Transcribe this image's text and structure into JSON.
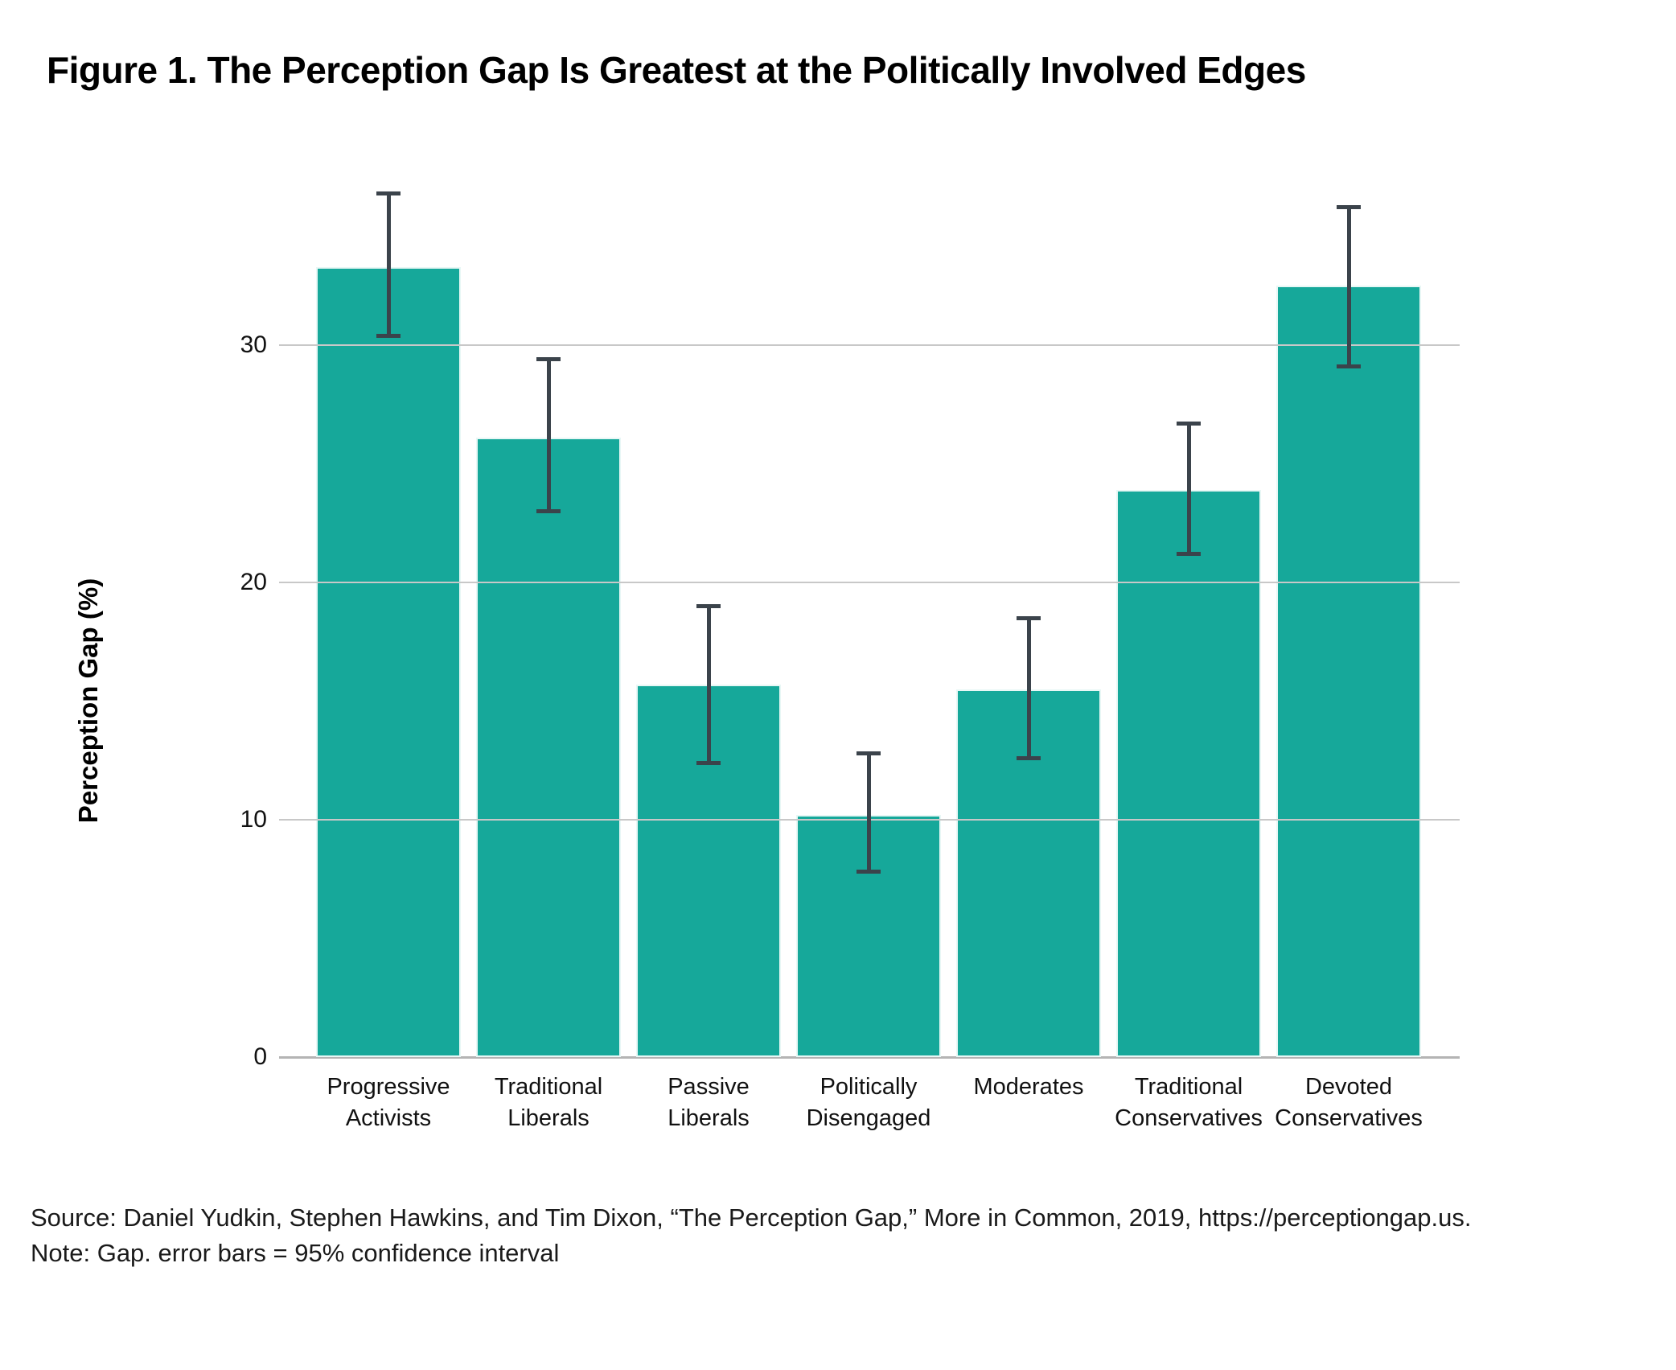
{
  "figure": {
    "title": "Figure 1. The Perception Gap Is Greatest at the Politically Involved Edges",
    "source": "Source: Daniel Yudkin, Stephen Hawkins, and Tim Dixon, “The Perception Gap,” More in Common, 2019, https://perceptiongap.us.",
    "note": "Note: Gap. error bars = 95% confidence interval"
  },
  "colors": {
    "bar": "#16A89A",
    "error_bar": "#3B434B",
    "gridline": "#C8C8C8",
    "axis_line": "#B4B4B4",
    "text": "#000000"
  },
  "chart_data": {
    "type": "bar",
    "title": "Figure 1. The Perception Gap Is Greatest at the Politically Involved Edges",
    "xlabel": "",
    "ylabel": "Perception Gap (%)",
    "ylim": [
      0,
      39
    ],
    "yticks": [
      0,
      10,
      20,
      30
    ],
    "grid": "horizontal gridlines at y ticks, drawn over bars",
    "legend_position": "none",
    "categories": [
      "Progressive Activists",
      "Traditional Liberals",
      "Passive Liberals",
      "Politically Disengaged",
      "Moderates",
      "Traditional Conservatives",
      "Devoted Conservatives"
    ],
    "category_label_lines": [
      [
        "Progressive",
        "Activists"
      ],
      [
        "Traditional",
        "Liberals"
      ],
      [
        "Passive",
        "Liberals"
      ],
      [
        "Politically",
        "Disengaged"
      ],
      [
        "Moderates"
      ],
      [
        "Traditional",
        "Conservatives"
      ],
      [
        "Devoted",
        "Conservatives"
      ]
    ],
    "series": [
      {
        "name": "Perception Gap (%)",
        "values": [
          33.3,
          26.1,
          15.7,
          10.2,
          15.5,
          23.9,
          32.5
        ]
      }
    ],
    "error_bars": {
      "meaning": "95% confidence interval",
      "low": [
        30.4,
        23.0,
        12.4,
        7.8,
        12.6,
        21.2,
        29.1
      ],
      "high": [
        36.4,
        29.4,
        19.0,
        12.8,
        18.5,
        26.7,
        35.8
      ]
    }
  }
}
